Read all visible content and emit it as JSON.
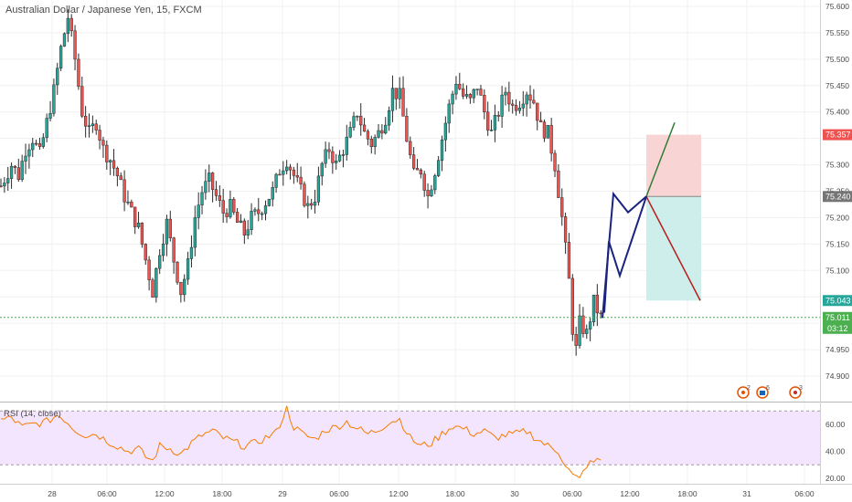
{
  "header": {
    "symbol_title": "Australian Dollar / Japanese Yen, 15, FXCM"
  },
  "price_axis": {
    "labels": [
      "75.600",
      "75.550",
      "75.500",
      "75.450",
      "75.400",
      "75.300",
      "75.250",
      "75.200",
      "75.150",
      "75.100",
      "74.950",
      "74.900"
    ]
  },
  "time_axis": {
    "labels": [
      "28",
      "06:00",
      "12:00",
      "18:00",
      "29",
      "06:00",
      "12:00",
      "18:00",
      "30",
      "06:00",
      "12:00",
      "18:00",
      "31",
      "06:00"
    ]
  },
  "rsi": {
    "title": "RSI (14, close)",
    "axis_labels": [
      "60.00",
      "40.00",
      "20.00"
    ],
    "upper": 70,
    "lower": 30,
    "line_color": "#f57c00",
    "band_color": "#f3e5fd"
  },
  "price_tags": {
    "target_tag": "75.357",
    "entry_tag": "75.240",
    "stop_tag": "75.043",
    "last_price_tag": "75.011",
    "countdown_tag": "03:12"
  },
  "event_badges": [
    {
      "count": "2",
      "icon": "dividend-icon"
    },
    {
      "count": "6",
      "icon": "news-icon"
    },
    {
      "count": "3",
      "icon": "event-icon"
    }
  ],
  "colors": {
    "up": "#26a69a",
    "down": "#ef5350",
    "ink": "#2b2b2b",
    "target_zone": "#f9d4d4",
    "stop_zone": "#cdeeea",
    "projection": "#1a237e",
    "bull_arrow": "#2e7d32",
    "bear_arrow": "#b71c1c",
    "last_price_line": "#4caf50"
  },
  "chart_data": {
    "type": "candlestick",
    "title": "Australian Dollar / Japanese Yen, 15, FXCM",
    "ylim": [
      74.87,
      75.61
    ],
    "close_path": [
      [
        0,
        75.26
      ],
      [
        3,
        75.3
      ],
      [
        5,
        75.28
      ],
      [
        7,
        75.33
      ],
      [
        9,
        75.35
      ],
      [
        11,
        75.32
      ],
      [
        13,
        75.38
      ],
      [
        15,
        75.44
      ],
      [
        17,
        75.52
      ],
      [
        19,
        75.58
      ],
      [
        21,
        75.5
      ],
      [
        23,
        75.4
      ],
      [
        25,
        75.36
      ],
      [
        27,
        75.38
      ],
      [
        29,
        75.33
      ],
      [
        31,
        75.31
      ],
      [
        33,
        75.28
      ],
      [
        35,
        75.24
      ],
      [
        37,
        75.21
      ],
      [
        39,
        75.18
      ],
      [
        41,
        75.12
      ],
      [
        43,
        75.06
      ],
      [
        45,
        75.14
      ],
      [
        47,
        75.19
      ],
      [
        49,
        75.12
      ],
      [
        51,
        75.06
      ],
      [
        53,
        75.11
      ],
      [
        55,
        75.2
      ],
      [
        57,
        75.25
      ],
      [
        59,
        75.27
      ],
      [
        61,
        75.24
      ],
      [
        63,
        75.21
      ],
      [
        65,
        75.22
      ],
      [
        67,
        75.19
      ],
      [
        69,
        75.17
      ],
      [
        71,
        75.2
      ],
      [
        73,
        75.21
      ],
      [
        75,
        75.23
      ],
      [
        77,
        75.25
      ],
      [
        79,
        75.29
      ],
      [
        81,
        75.31
      ],
      [
        83,
        75.28
      ],
      [
        85,
        75.25
      ],
      [
        87,
        75.22
      ],
      [
        89,
        75.24
      ],
      [
        91,
        75.3
      ],
      [
        93,
        75.33
      ],
      [
        95,
        75.3
      ],
      [
        97,
        75.33
      ],
      [
        99,
        75.36
      ],
      [
        101,
        75.4
      ],
      [
        103,
        75.36
      ],
      [
        105,
        75.34
      ],
      [
        107,
        75.36
      ],
      [
        109,
        75.39
      ],
      [
        111,
        75.44
      ],
      [
        113,
        75.43
      ],
      [
        115,
        75.35
      ],
      [
        117,
        75.28
      ],
      [
        119,
        75.29
      ],
      [
        121,
        75.24
      ],
      [
        123,
        75.29
      ],
      [
        125,
        75.35
      ],
      [
        127,
        75.41
      ],
      [
        129,
        75.46
      ],
      [
        131,
        75.43
      ],
      [
        133,
        75.42
      ],
      [
        135,
        75.45
      ],
      [
        137,
        75.4
      ],
      [
        139,
        75.36
      ],
      [
        141,
        75.4
      ],
      [
        143,
        75.44
      ],
      [
        145,
        75.41
      ],
      [
        147,
        75.42
      ],
      [
        149,
        75.44
      ],
      [
        151,
        75.42
      ],
      [
        153,
        75.37
      ],
      [
        155,
        75.36
      ],
      [
        157,
        75.3
      ],
      [
        159,
        75.2
      ],
      [
        161,
        75.08
      ],
      [
        162,
        74.99
      ],
      [
        163,
        74.95
      ],
      [
        164,
        75.0
      ],
      [
        166,
        74.98
      ],
      [
        168,
        75.04
      ],
      [
        170,
        75.01
      ]
    ],
    "candle_count": 171,
    "rsi_path": [
      [
        0,
        63
      ],
      [
        3,
        65
      ],
      [
        6,
        58
      ],
      [
        9,
        60
      ],
      [
        13,
        62
      ],
      [
        16,
        67
      ],
      [
        18,
        64
      ],
      [
        21,
        56
      ],
      [
        24,
        52
      ],
      [
        27,
        53
      ],
      [
        30,
        48
      ],
      [
        33,
        44
      ],
      [
        36,
        40
      ],
      [
        39,
        42
      ],
      [
        41,
        36
      ],
      [
        43,
        33
      ],
      [
        45,
        44
      ],
      [
        48,
        42
      ],
      [
        51,
        38
      ],
      [
        54,
        46
      ],
      [
        57,
        52
      ],
      [
        60,
        55
      ],
      [
        63,
        50
      ],
      [
        66,
        47
      ],
      [
        69,
        44
      ],
      [
        72,
        46
      ],
      [
        75,
        50
      ],
      [
        78,
        54
      ],
      [
        81,
        72
      ],
      [
        83,
        58
      ],
      [
        86,
        52
      ],
      [
        89,
        49
      ],
      [
        92,
        56
      ],
      [
        95,
        58
      ],
      [
        98,
        62
      ],
      [
        101,
        57
      ],
      [
        104,
        53
      ],
      [
        107,
        56
      ],
      [
        110,
        62
      ],
      [
        113,
        64
      ],
      [
        116,
        50
      ],
      [
        119,
        44
      ],
      [
        122,
        46
      ],
      [
        125,
        53
      ],
      [
        128,
        59
      ],
      [
        131,
        57
      ],
      [
        134,
        53
      ],
      [
        137,
        55
      ],
      [
        140,
        50
      ],
      [
        143,
        52
      ],
      [
        146,
        53
      ],
      [
        149,
        55
      ],
      [
        152,
        49
      ],
      [
        155,
        44
      ],
      [
        158,
        40
      ],
      [
        160,
        30
      ],
      [
        162,
        22
      ],
      [
        164,
        19
      ],
      [
        166,
        30
      ],
      [
        168,
        32
      ],
      [
        170,
        34
      ]
    ],
    "shapes": {
      "long_position": {
        "entry": 75.24,
        "target": 75.357,
        "stop": 75.043
      },
      "projection_path": [
        [
          75.04
        ],
        [
          75.25
        ],
        [
          75.21
        ],
        [
          75.24
        ]
      ]
    }
  }
}
